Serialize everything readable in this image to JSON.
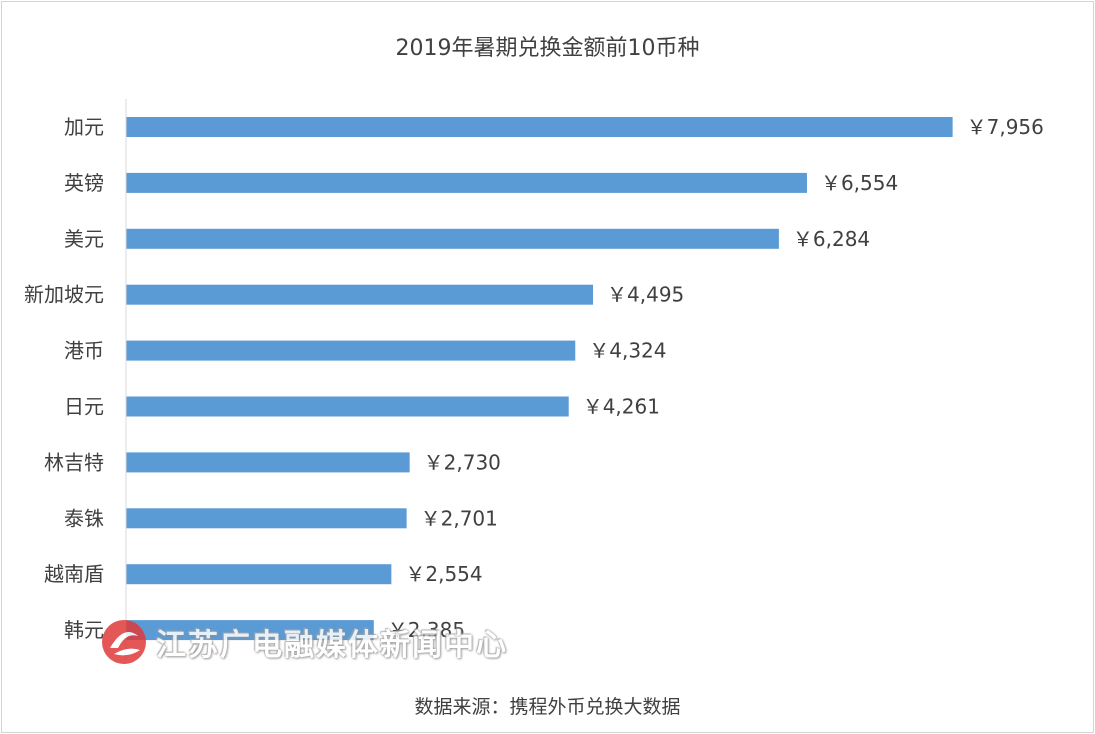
{
  "chart_data": {
    "type": "bar",
    "orientation": "horizontal",
    "title": "2019年暑期兑换金额前10币种",
    "categories": [
      "加元",
      "英镑",
      "美元",
      "新加坡元",
      "港币",
      "日元",
      "林吉特",
      "泰铢",
      "越南盾",
      "韩元"
    ],
    "values": [
      7956,
      6554,
      6284,
      4495,
      4324,
      4261,
      2730,
      2701,
      2554,
      2385
    ],
    "value_labels": [
      "￥7,956",
      "￥6,554",
      "￥6,284",
      "￥4,495",
      "￥4,324",
      "￥4,261",
      "￥2,730",
      "￥2,701",
      "￥2,554",
      "￥2,385"
    ],
    "xlim": [
      0,
      8000
    ],
    "grid": false,
    "bar_color": "#5b9bd5"
  },
  "footer": {
    "source": "数据来源：携程外币兑换大数据"
  },
  "watermark": {
    "text": "江苏广电融媒体新闻中心",
    "logo_color": "#e03a3a"
  }
}
